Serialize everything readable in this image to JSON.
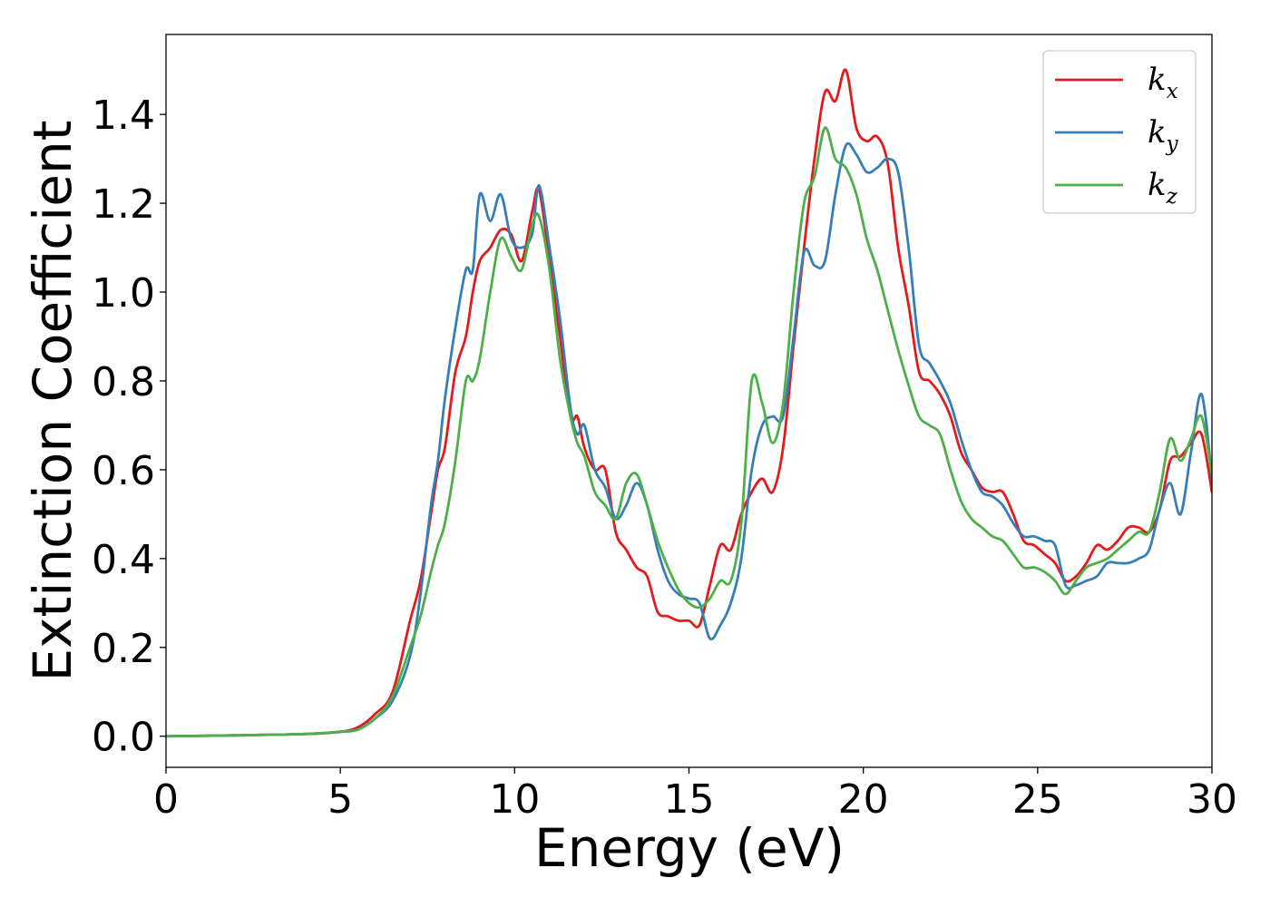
{
  "chart_data": {
    "type": "line",
    "title": "",
    "xlabel": "Energy (eV)",
    "ylabel": "Extinction Coefficient",
    "xlim": [
      0,
      30
    ],
    "ylim": [
      -0.07,
      1.58
    ],
    "xticks": [
      0,
      5,
      10,
      15,
      20,
      25,
      30
    ],
    "xtick_labels": [
      "0",
      "5",
      "10",
      "15",
      "20",
      "25",
      "30"
    ],
    "yticks": [
      0.0,
      0.2,
      0.4,
      0.6,
      0.8,
      1.0,
      1.2,
      1.4
    ],
    "ytick_labels": [
      "0.0",
      "0.2",
      "0.4",
      "0.6",
      "0.8",
      "1.0",
      "1.2",
      "1.4"
    ],
    "grid": false,
    "legend_position": "top-right",
    "series": [
      {
        "name": "k_x",
        "legend_base": "k",
        "legend_sub": "x",
        "color": "#e41a1c",
        "x": [
          0,
          2,
          4,
          5,
          5.5,
          6,
          6.5,
          7,
          7.3,
          7.6,
          7.8,
          8,
          8.3,
          8.6,
          8.8,
          9,
          9.3,
          9.6,
          9.9,
          10.2,
          10.5,
          10.7,
          11,
          11.3,
          11.6,
          11.8,
          12,
          12.3,
          12.6,
          12.9,
          13.2,
          13.5,
          13.8,
          14.1,
          14.4,
          14.7,
          15,
          15.3,
          15.6,
          15.9,
          16.2,
          16.5,
          16.8,
          17.1,
          17.4,
          17.7,
          18,
          18.3,
          18.6,
          18.9,
          19.2,
          19.5,
          19.8,
          20.1,
          20.4,
          20.7,
          21,
          21.3,
          21.6,
          21.9,
          22.2,
          22.5,
          22.8,
          23.1,
          23.4,
          23.7,
          24,
          24.3,
          24.6,
          24.9,
          25.2,
          25.5,
          25.8,
          26.1,
          26.4,
          26.7,
          27,
          27.3,
          27.6,
          27.9,
          28.2,
          28.5,
          28.8,
          29.1,
          29.4,
          29.7,
          30
        ],
        "y": [
          0.0,
          0.002,
          0.005,
          0.01,
          0.02,
          0.05,
          0.1,
          0.26,
          0.35,
          0.5,
          0.6,
          0.65,
          0.82,
          0.9,
          1.0,
          1.07,
          1.1,
          1.14,
          1.13,
          1.07,
          1.18,
          1.23,
          1.07,
          0.9,
          0.72,
          0.72,
          0.65,
          0.6,
          0.6,
          0.46,
          0.42,
          0.38,
          0.36,
          0.28,
          0.27,
          0.26,
          0.26,
          0.25,
          0.34,
          0.43,
          0.42,
          0.5,
          0.55,
          0.58,
          0.55,
          0.65,
          0.88,
          1.1,
          1.3,
          1.45,
          1.43,
          1.5,
          1.37,
          1.34,
          1.35,
          1.29,
          1.1,
          0.97,
          0.82,
          0.8,
          0.77,
          0.72,
          0.64,
          0.6,
          0.56,
          0.55,
          0.55,
          0.5,
          0.44,
          0.43,
          0.41,
          0.39,
          0.35,
          0.36,
          0.39,
          0.43,
          0.42,
          0.44,
          0.47,
          0.47,
          0.46,
          0.51,
          0.62,
          0.63,
          0.66,
          0.68,
          0.55
        ]
      },
      {
        "name": "k_y",
        "legend_base": "k",
        "legend_sub": "y",
        "color": "#377eb8",
        "x": [
          0,
          2,
          4,
          5,
          5.5,
          6,
          6.5,
          7,
          7.3,
          7.6,
          7.8,
          8,
          8.3,
          8.6,
          8.8,
          9,
          9.3,
          9.6,
          9.9,
          10.2,
          10.5,
          10.7,
          11,
          11.3,
          11.6,
          11.8,
          12,
          12.3,
          12.6,
          12.9,
          13.2,
          13.5,
          13.8,
          14.1,
          14.4,
          14.7,
          15,
          15.3,
          15.6,
          15.9,
          16.2,
          16.5,
          16.8,
          17.1,
          17.4,
          17.7,
          18,
          18.3,
          18.6,
          18.9,
          19.2,
          19.5,
          19.8,
          20.1,
          20.4,
          20.7,
          21,
          21.3,
          21.6,
          21.9,
          22.2,
          22.5,
          22.8,
          23.1,
          23.4,
          23.7,
          24,
          24.3,
          24.6,
          24.9,
          25.2,
          25.5,
          25.8,
          26.1,
          26.4,
          26.7,
          27,
          27.3,
          27.6,
          27.9,
          28.2,
          28.5,
          28.8,
          29.1,
          29.4,
          29.7,
          30
        ],
        "y": [
          0.0,
          0.002,
          0.005,
          0.01,
          0.015,
          0.04,
          0.08,
          0.18,
          0.32,
          0.52,
          0.62,
          0.76,
          0.92,
          1.05,
          1.05,
          1.22,
          1.16,
          1.22,
          1.12,
          1.1,
          1.13,
          1.24,
          1.1,
          0.94,
          0.74,
          0.68,
          0.7,
          0.6,
          0.56,
          0.49,
          0.52,
          0.57,
          0.52,
          0.42,
          0.35,
          0.32,
          0.31,
          0.3,
          0.22,
          0.25,
          0.3,
          0.4,
          0.6,
          0.7,
          0.72,
          0.72,
          0.9,
          1.09,
          1.06,
          1.07,
          1.22,
          1.33,
          1.31,
          1.27,
          1.28,
          1.3,
          1.27,
          1.1,
          0.88,
          0.84,
          0.8,
          0.75,
          0.67,
          0.6,
          0.55,
          0.54,
          0.52,
          0.48,
          0.45,
          0.45,
          0.44,
          0.43,
          0.34,
          0.34,
          0.35,
          0.36,
          0.39,
          0.39,
          0.39,
          0.4,
          0.42,
          0.51,
          0.57,
          0.5,
          0.64,
          0.77,
          0.58
        ]
      },
      {
        "name": "k_z",
        "legend_base": "k",
        "legend_sub": "z",
        "color": "#4daf4a",
        "x": [
          0,
          2,
          4,
          5,
          5.5,
          6,
          6.5,
          7,
          7.3,
          7.6,
          7.8,
          8,
          8.3,
          8.6,
          8.8,
          9,
          9.3,
          9.6,
          9.9,
          10.2,
          10.5,
          10.7,
          11,
          11.3,
          11.6,
          11.8,
          12,
          12.3,
          12.6,
          12.9,
          13.2,
          13.5,
          13.8,
          14.1,
          14.4,
          14.7,
          15,
          15.3,
          15.6,
          15.9,
          16.2,
          16.5,
          16.8,
          17.1,
          17.4,
          17.7,
          18,
          18.3,
          18.6,
          18.9,
          19.2,
          19.5,
          19.8,
          20.1,
          20.4,
          20.7,
          21,
          21.3,
          21.6,
          21.9,
          22.2,
          22.5,
          22.8,
          23.1,
          23.4,
          23.7,
          24,
          24.3,
          24.6,
          24.9,
          25.2,
          25.5,
          25.8,
          26.1,
          26.4,
          26.7,
          27,
          27.3,
          27.6,
          27.9,
          28.2,
          28.5,
          28.8,
          29.1,
          29.4,
          29.7,
          30
        ],
        "y": [
          0.0,
          0.002,
          0.005,
          0.01,
          0.015,
          0.04,
          0.09,
          0.2,
          0.27,
          0.37,
          0.43,
          0.48,
          0.62,
          0.8,
          0.8,
          0.85,
          1.0,
          1.12,
          1.08,
          1.05,
          1.15,
          1.17,
          1.05,
          0.85,
          0.72,
          0.66,
          0.63,
          0.55,
          0.52,
          0.49,
          0.57,
          0.59,
          0.52,
          0.44,
          0.38,
          0.33,
          0.3,
          0.29,
          0.31,
          0.35,
          0.35,
          0.48,
          0.8,
          0.75,
          0.66,
          0.75,
          1.0,
          1.2,
          1.26,
          1.37,
          1.3,
          1.28,
          1.22,
          1.12,
          1.05,
          0.96,
          0.87,
          0.79,
          0.72,
          0.7,
          0.68,
          0.6,
          0.53,
          0.49,
          0.47,
          0.45,
          0.44,
          0.41,
          0.38,
          0.38,
          0.37,
          0.35,
          0.32,
          0.35,
          0.38,
          0.39,
          0.4,
          0.42,
          0.44,
          0.46,
          0.46,
          0.55,
          0.67,
          0.62,
          0.67,
          0.72,
          0.59
        ]
      }
    ]
  }
}
